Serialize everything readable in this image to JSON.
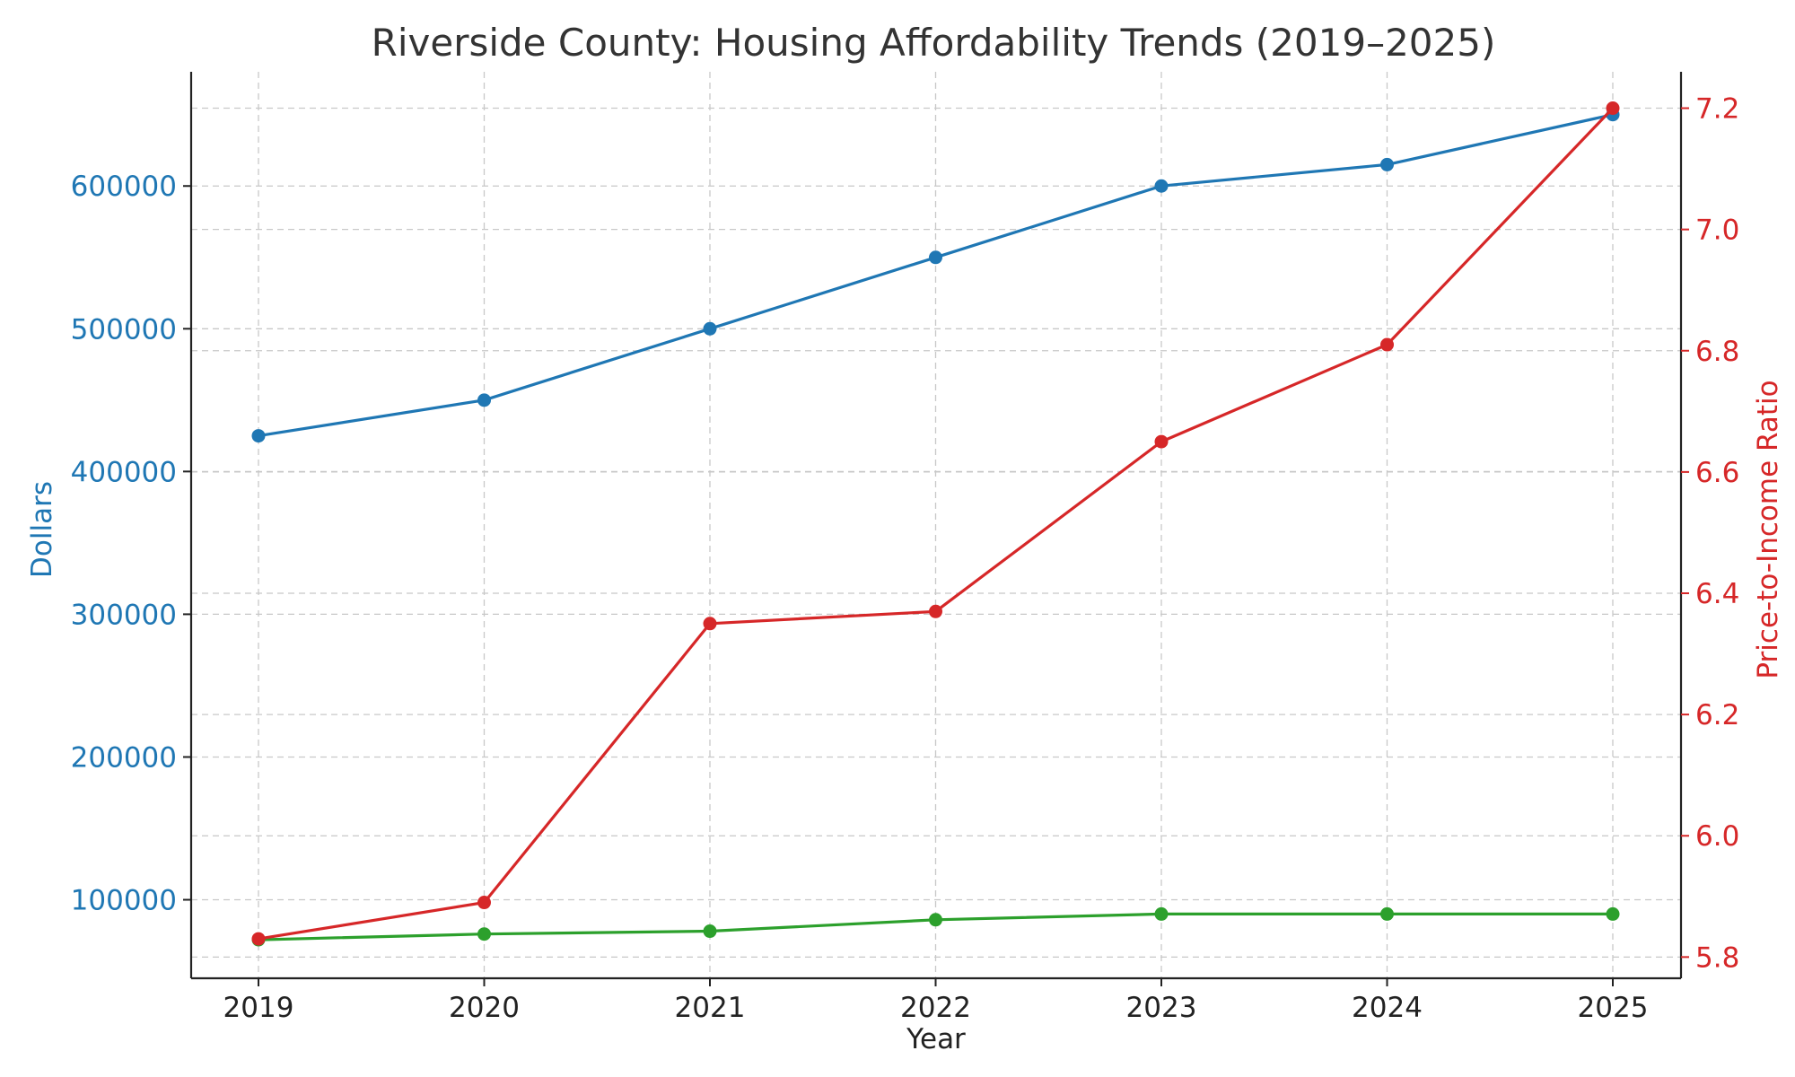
{
  "chart_data": {
    "type": "line",
    "title": "Riverside County: Housing Affordability Trends (2019–2025)",
    "xlabel": "Year",
    "ylabel": "Dollars",
    "y2label": "Price-to-Income Ratio",
    "x": [
      "2019",
      "2020",
      "2021",
      "2022",
      "2023",
      "2024",
      "2025"
    ],
    "ylim": [
      45000,
      680000
    ],
    "y_ticks": [
      100000,
      200000,
      300000,
      400000,
      500000,
      600000
    ],
    "y_tick_labels": [
      "100000",
      "200000",
      "300000",
      "400000",
      "500000",
      "600000"
    ],
    "y2lim": [
      5.765,
      7.26
    ],
    "y2_ticks": [
      5.8,
      6.0,
      6.2,
      6.4,
      6.6,
      6.8,
      7.0,
      7.2
    ],
    "y2_tick_labels": [
      "5.8",
      "6.0",
      "6.2",
      "6.4",
      "6.6",
      "6.8",
      "7.0",
      "7.2"
    ],
    "grid": true,
    "series": [
      {
        "values": [
          425000,
          450000,
          500000,
          550000,
          600000,
          615000,
          650000
        ],
        "color": "#1f77b4",
        "axis": "left"
      },
      {
        "values": [
          72000,
          76000,
          78000,
          86000,
          90000,
          90000,
          90000
        ],
        "color": "#2ca02c",
        "axis": "left"
      },
      {
        "values": [
          5.83,
          5.89,
          6.35,
          6.37,
          6.65,
          6.81,
          7.2
        ],
        "color": "#d62728",
        "axis": "right"
      }
    ],
    "colors": {
      "left_axis": "#1f77b4",
      "right_axis": "#d62728",
      "x_axis": "#222222"
    }
  }
}
